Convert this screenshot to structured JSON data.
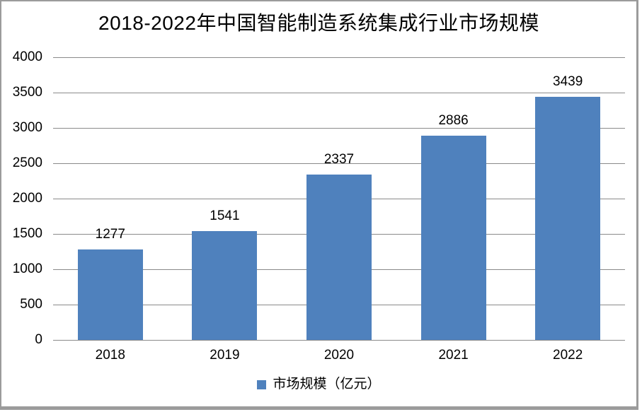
{
  "chart_data": {
    "type": "bar",
    "title": "2018-2022年中国智能制造系统集成行业市场规模",
    "categories": [
      "2018",
      "2019",
      "2020",
      "2021",
      "2022"
    ],
    "series": [
      {
        "name": "市场规模（亿元）",
        "values": [
          1277,
          1541,
          2337,
          2886,
          3439
        ]
      }
    ],
    "xlabel": "",
    "ylabel": "",
    "ylim": [
      0,
      4000
    ],
    "yticks": [
      0,
      500,
      1000,
      1500,
      2000,
      2500,
      3000,
      3500,
      4000
    ],
    "grid": true,
    "data_labels_shown": true,
    "legend_position": "bottom",
    "colors": {
      "bar": "#4F81BD",
      "gridline": "#8a8a8a",
      "frame_border": "#9b9b9b",
      "text": "#000000"
    }
  }
}
